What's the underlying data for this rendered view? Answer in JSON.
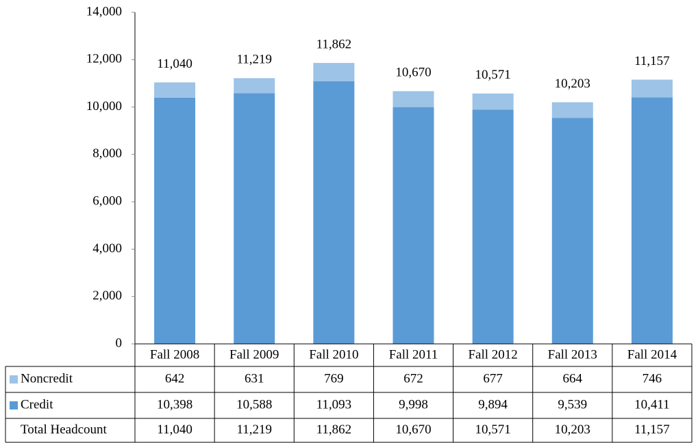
{
  "chart_data": {
    "type": "stacked_bar",
    "categories": [
      "Fall 2008",
      "Fall 2009",
      "Fall 2010",
      "Fall 2011",
      "Fall 2012",
      "Fall 2013",
      "Fall 2014"
    ],
    "series": [
      {
        "name": "Noncredit",
        "color": "#9dc3e6",
        "values": [
          642,
          631,
          769,
          672,
          677,
          664,
          746
        ]
      },
      {
        "name": "Credit",
        "color": "#5b9bd5",
        "values": [
          10398,
          10588,
          11093,
          9998,
          9894,
          9539,
          10411
        ],
        "value_labels": [
          "10,398",
          "10,588",
          "11,093",
          "9,998",
          "9,894",
          "9,539",
          "10,411"
        ]
      }
    ],
    "totals": {
      "name": "Total Headcount",
      "values": [
        11040,
        11219,
        11862,
        10670,
        10571,
        10203,
        11157
      ],
      "value_labels": [
        "11,040",
        "11,219",
        "11,862",
        "10,670",
        "10,571",
        "10,203",
        "11,157"
      ]
    },
    "ylim": [
      0,
      14000
    ],
    "yticks": [
      0,
      {
        "value": 2000,
        "label": "2,000"
      },
      {
        "value": 4000,
        "label": "4,000"
      },
      {
        "value": 6000,
        "label": "6,000"
      },
      {
        "value": 8000,
        "label": "8,000"
      },
      {
        "value": 10000,
        "label": "10,000"
      },
      {
        "value": 12000,
        "label": "12,000"
      },
      {
        "value": 14000,
        "label": "14,000"
      }
    ],
    "grid": false
  }
}
